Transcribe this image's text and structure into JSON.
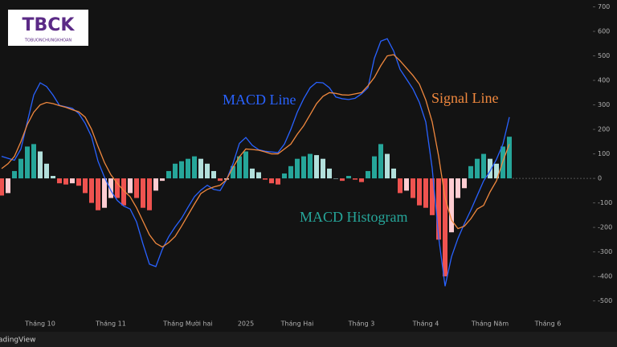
{
  "logo": {
    "title": "TBCK",
    "subtitle": "TOBUONCHUNGKHOAN"
  },
  "footer": "adingView",
  "chart_data": {
    "type": "combo",
    "categories": [
      null,
      null,
      null,
      null,
      null,
      null,
      "Tháng 10",
      null,
      null,
      null,
      null,
      null,
      null,
      null,
      null,
      null,
      null,
      "Tháng 11",
      null,
      null,
      null,
      null,
      null,
      null,
      null,
      null,
      null,
      null,
      null,
      "Tháng Mười hai",
      null,
      null,
      null,
      null,
      null,
      null,
      null,
      null,
      "2025",
      null,
      null,
      null,
      null,
      null,
      null,
      null,
      "Tháng Hai",
      null,
      null,
      null,
      null,
      null,
      null,
      null,
      null,
      null,
      "Tháng 3",
      null,
      null,
      null,
      null,
      null,
      null,
      null,
      null,
      null,
      "Tháng 4",
      null,
      null,
      null,
      null,
      null,
      null,
      null,
      null,
      null,
      "Tháng Năm",
      null,
      null,
      null,
      null,
      null,
      null,
      null,
      null,
      "Tháng 6"
    ],
    "series": [
      {
        "name": "MACD Histogram",
        "type": "bar",
        "color": "#26a69a",
        "color_falling": "#b2dfdb",
        "color_negative": "#ef5350",
        "color_negative_rising": "#ffcdd2",
        "values": [
          -70,
          -60,
          30,
          80,
          130,
          140,
          110,
          60,
          10,
          -20,
          -25,
          -20,
          -30,
          -60,
          -100,
          -130,
          -120,
          -80,
          -80,
          -110,
          -60,
          -80,
          -120,
          -130,
          -50,
          -10,
          30,
          60,
          70,
          80,
          90,
          80,
          60,
          30,
          -10,
          -5,
          50,
          90,
          110,
          40,
          25,
          -5,
          -20,
          -25,
          20,
          50,
          80,
          90,
          100,
          95,
          80,
          40,
          0,
          -10,
          10,
          -5,
          -15,
          30,
          90,
          140,
          100,
          40,
          -60,
          -50,
          -80,
          -110,
          -120,
          -150,
          -250,
          -400,
          -220,
          -80,
          -40,
          50,
          80,
          100,
          80,
          60,
          130,
          170,
          null,
          null,
          null,
          null,
          null,
          null
        ]
      },
      {
        "name": "MACD Line",
        "type": "line",
        "color": "#2962ff",
        "values": [
          90,
          82,
          74,
          120,
          230,
          340,
          390,
          375,
          340,
          298,
          292,
          286,
          265,
          225,
          170,
          70,
          5,
          -50,
          -90,
          -113,
          -125,
          -178,
          -268,
          -350,
          -360,
          -290,
          -238,
          -198,
          -163,
          -118,
          -75,
          -48,
          -28,
          -45,
          -50,
          -5,
          60,
          143,
          167,
          135,
          117,
          111,
          108,
          105,
          140,
          200,
          270,
          325,
          370,
          392,
          390,
          370,
          332,
          325,
          322,
          327,
          345,
          370,
          490,
          560,
          570,
          520,
          445,
          405,
          365,
          310,
          230,
          40,
          -240,
          -440,
          -320,
          -245,
          -185,
          -130,
          -70,
          -10,
          30,
          78,
          140,
          250,
          null,
          null,
          null,
          null,
          null,
          null
        ]
      },
      {
        "name": "Signal Line",
        "type": "line",
        "color": "#f0883e",
        "values": [
          40,
          60,
          90,
          150,
          220,
          270,
          300,
          310,
          305,
          297,
          290,
          280,
          272,
          250,
          200,
          130,
          65,
          15,
          -20,
          -50,
          -75,
          -120,
          -175,
          -230,
          -265,
          -280,
          -262,
          -237,
          -195,
          -150,
          -105,
          -62,
          -45,
          -35,
          -28,
          -5,
          45,
          88,
          120,
          118,
          115,
          108,
          100,
          100,
          120,
          140,
          180,
          215,
          260,
          305,
          335,
          350,
          347,
          341,
          340,
          345,
          350,
          378,
          412,
          460,
          500,
          505,
          480,
          450,
          420,
          385,
          320,
          230,
          90,
          -80,
          -170,
          -205,
          -195,
          -165,
          -125,
          -110,
          -55,
          -10,
          70,
          140,
          null,
          null,
          null,
          null,
          null,
          null
        ]
      }
    ],
    "ylim": [
      -616,
      728
    ],
    "yticks": [
      700,
      600,
      500,
      400,
      300,
      200,
      100,
      0,
      -100,
      -200,
      -300,
      -400,
      -500
    ],
    "grid": false
  }
}
